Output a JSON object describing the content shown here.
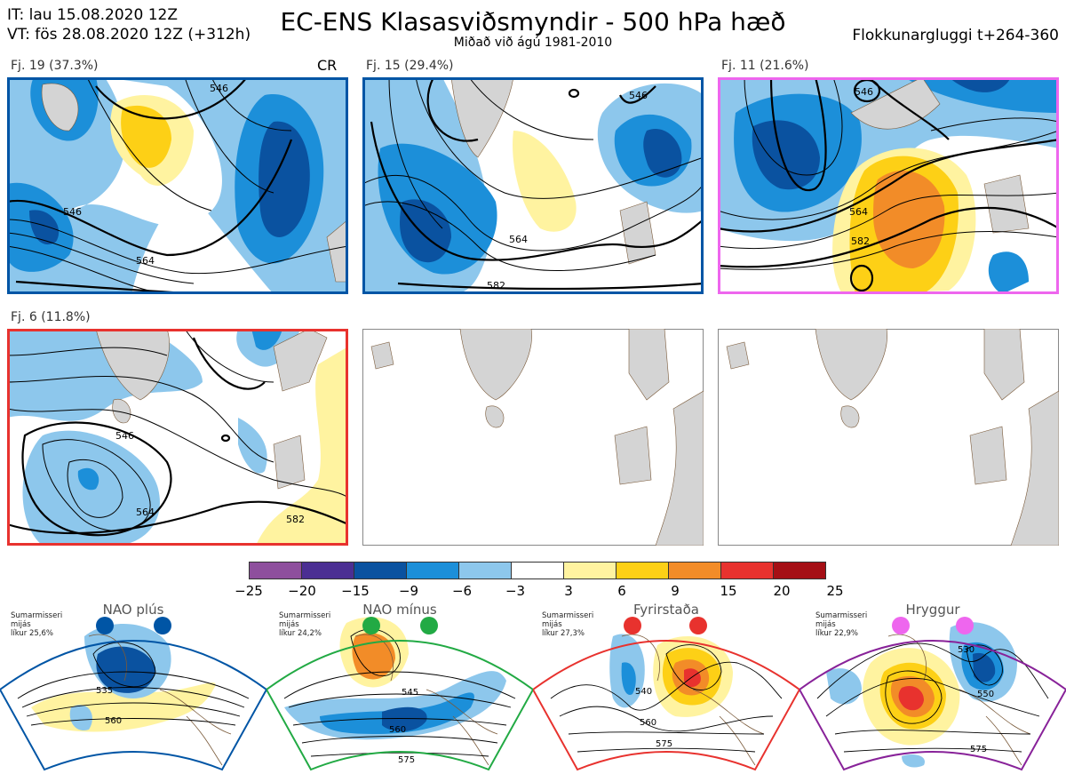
{
  "header": {
    "init_time": "IT: lau 15.08.2020 12Z",
    "valid_time": "VT: fös 28.08.2020 12Z  (+312h)",
    "title": "EC-ENS Klasasviðsmyndir - 500 hPa hæð",
    "subtitle": "Miðað við ágú 1981-2010",
    "window": "Flokkunargluggi t+264-360"
  },
  "panels": [
    {
      "label": "Fj. 19 (37.3%)",
      "extra": "CR",
      "border": "#0055a5",
      "contours": [
        "546",
        "546",
        "564"
      ]
    },
    {
      "label": "Fj. 15 (29.4%)",
      "extra": "",
      "border": "#0055a5",
      "contours": [
        "564",
        "582",
        "546"
      ]
    },
    {
      "label": "Fj. 11 (21.6%)",
      "extra": "",
      "border": "#ee66ee",
      "contours": [
        "546",
        "564",
        "582"
      ]
    },
    {
      "label": "Fj. 6 (11.8%)",
      "extra": "",
      "border": "#e8322e",
      "contours": [
        "546",
        "564",
        "582"
      ]
    }
  ],
  "legend": {
    "colors": [
      "#8e4f9d",
      "#4b2f93",
      "#0a52a0",
      "#1c8fd9",
      "#8dc7ec",
      "#ffffff",
      "#fff3a0",
      "#fdd016",
      "#f28c28",
      "#e8322e",
      "#a50f15"
    ],
    "ticks": [
      "−25",
      "−20",
      "−15",
      "−9",
      "−6",
      "−3",
      "3",
      "6",
      "9",
      "15",
      "20",
      "25"
    ]
  },
  "regimes": [
    {
      "name": "NAO plús",
      "season": "Sumarmisseri",
      "phase": "mijás",
      "prob": "líkur 25,6%",
      "color": "#0055a5",
      "contours": [
        "535",
        "560"
      ]
    },
    {
      "name": "NAO mínus",
      "season": "Sumarmisseri",
      "phase": "mijás",
      "prob": "líkur 24,2%",
      "color": "#22aa44",
      "contours": [
        "545",
        "560",
        "575"
      ]
    },
    {
      "name": "Fyrirstaða",
      "season": "Sumarmisseri",
      "phase": "mijás",
      "prob": "líkur 27,3%",
      "color": "#e8322e",
      "contours": [
        "540",
        "560",
        "575"
      ]
    },
    {
      "name": "Hryggur",
      "season": "Sumarmisseri",
      "phase": "mijás",
      "prob": "líkur 22,9%",
      "color": "#882299",
      "contours": [
        "530",
        "550",
        "575"
      ]
    }
  ]
}
